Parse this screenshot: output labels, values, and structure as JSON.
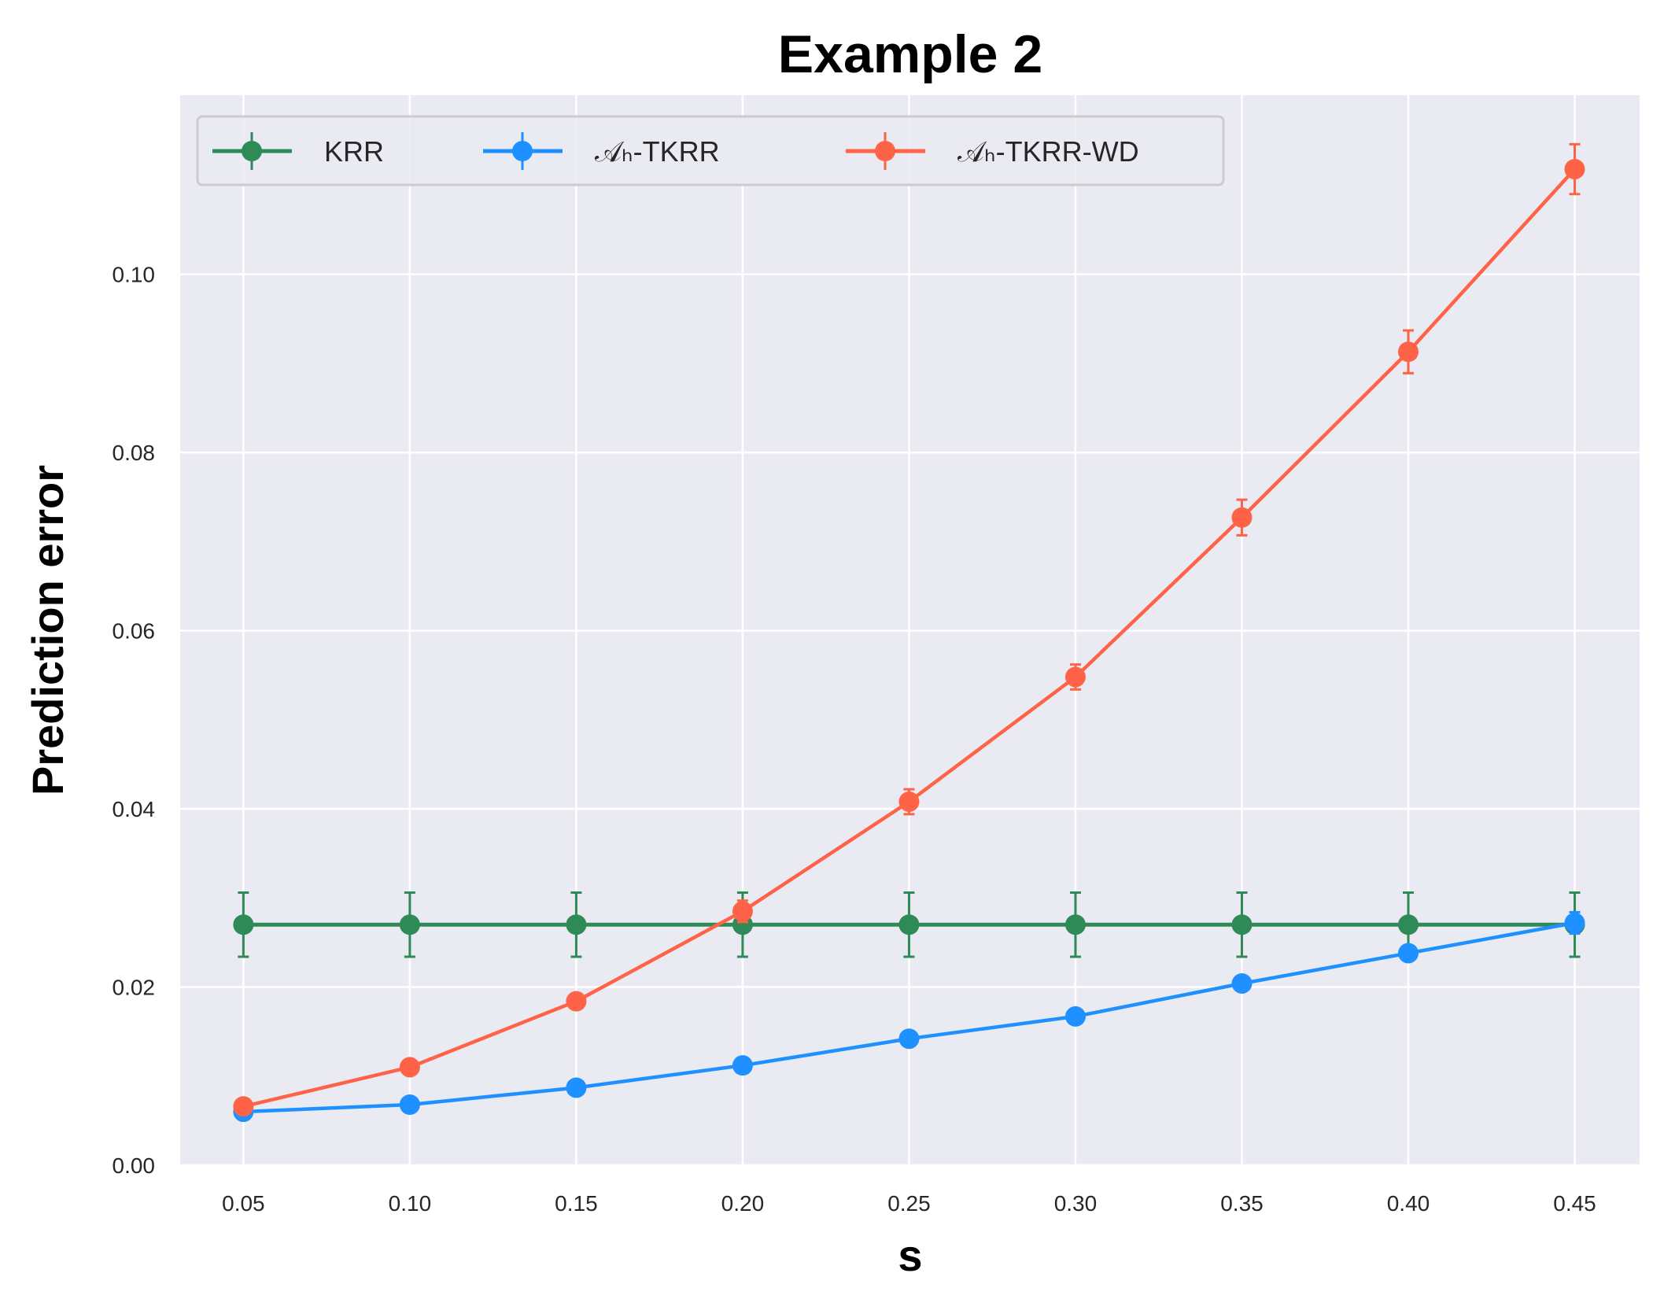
{
  "chart_data": {
    "type": "line",
    "title": "Example 2",
    "xlabel": "s",
    "ylabel": "Prediction error",
    "x": [
      0.05,
      0.1,
      0.15,
      0.2,
      0.25,
      0.3,
      0.35,
      0.4,
      0.45
    ],
    "xticks": [
      "0.05",
      "0.10",
      "0.15",
      "0.20",
      "0.25",
      "0.30",
      "0.35",
      "0.40",
      "0.45"
    ],
    "yticks": [
      "0.00",
      "0.02",
      "0.04",
      "0.06",
      "0.08",
      "0.10"
    ],
    "xlim": [
      0.031,
      0.4695
    ],
    "ylim": [
      0.0,
      0.1201
    ],
    "grid": true,
    "legend_position": "top-left",
    "series": [
      {
        "name": "KRR",
        "color": "#2e8b57",
        "values": [
          0.027,
          0.027,
          0.027,
          0.027,
          0.027,
          0.027,
          0.027,
          0.027,
          0.027
        ],
        "errors": [
          0.0036,
          0.0036,
          0.0036,
          0.0036,
          0.0036,
          0.0036,
          0.0036,
          0.0036,
          0.0036
        ]
      },
      {
        "name": "𝒜ₕ-TKRR",
        "color": "#1e90ff",
        "values": [
          0.006,
          0.0068,
          0.0087,
          0.0112,
          0.0142,
          0.0167,
          0.0204,
          0.0238,
          0.0272
        ],
        "errors": [
          0.0004,
          0.0004,
          0.0004,
          0.0004,
          0.0005,
          0.0006,
          0.0008,
          0.0008,
          0.0012
        ]
      },
      {
        "name": "𝒜ₕ-TKRR-WD",
        "color": "#ff6347",
        "values": [
          0.0066,
          0.011,
          0.0184,
          0.0285,
          0.0408,
          0.0548,
          0.0727,
          0.0913,
          0.1118
        ],
        "errors": [
          0.0004,
          0.0005,
          0.0005,
          0.0012,
          0.0014,
          0.0014,
          0.002,
          0.0024,
          0.0028
        ]
      }
    ]
  }
}
